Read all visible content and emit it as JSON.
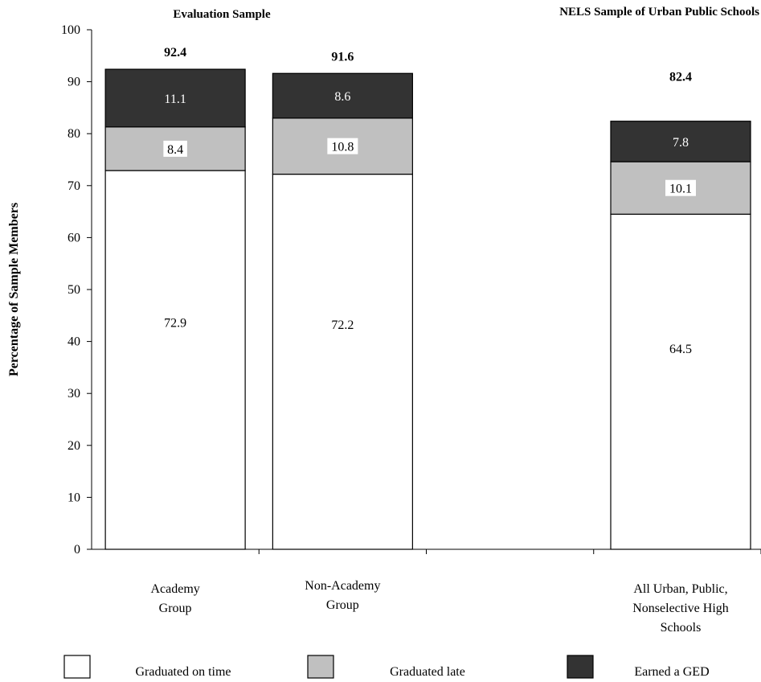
{
  "chart_data": {
    "type": "bar",
    "stacked": true,
    "group_titles": [
      {
        "label": "Evaluation Sample",
        "covers": [
          "Academy Group",
          "Non-Academy Group"
        ]
      },
      {
        "label": "NELS Sample of Urban Public Schools",
        "covers": [
          "All Urban, Public, Nonselective High Schools"
        ]
      }
    ],
    "ylabel": "Percentage of Sample Members",
    "ylim": [
      0,
      100
    ],
    "yticks": [
      "0",
      "10",
      "20",
      "30",
      "40",
      "50",
      "60",
      "70",
      "80",
      "90",
      "100"
    ],
    "categories": [
      [
        "Academy",
        "Group"
      ],
      [
        "Non-Academy",
        "Group"
      ],
      [
        "All Urban, Public,",
        "Nonselective High",
        "Schools"
      ]
    ],
    "category_slots": [
      0,
      1,
      3
    ],
    "slot_count": 4,
    "series": [
      {
        "name": "Graduated on time",
        "values": [
          72.9,
          72.2,
          64.5
        ],
        "labels": [
          "72.9",
          "72.2",
          "64.5"
        ],
        "color": "#ffffff",
        "label_color": "#000000"
      },
      {
        "name": "Graduated late",
        "values": [
          8.4,
          10.8,
          10.1
        ],
        "labels": [
          "8.4",
          "10.8",
          "10.1"
        ],
        "color": "#c0c0c0",
        "label_color": "#000000"
      },
      {
        "name": "Earned a GED",
        "values": [
          11.1,
          8.6,
          7.8
        ],
        "labels": [
          "11.1",
          "8.6",
          "7.8"
        ],
        "color": "#333333",
        "label_color": "#ffffff"
      }
    ],
    "totals": [
      92.4,
      91.6,
      82.4
    ],
    "total_labels": [
      "92.4",
      "91.6",
      "82.4"
    ],
    "legend": {
      "position": "bottom"
    },
    "grid": false
  }
}
